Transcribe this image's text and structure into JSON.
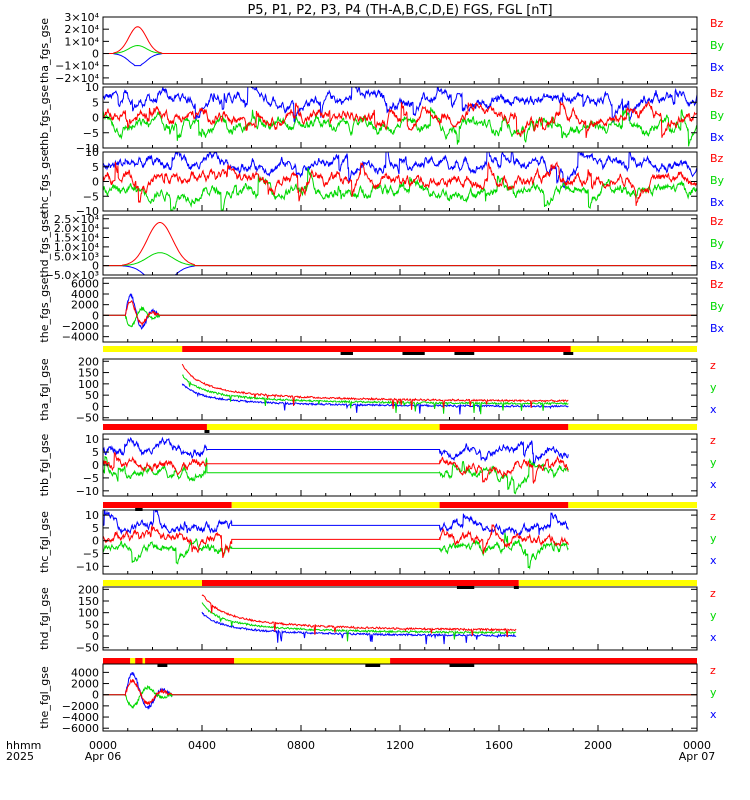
{
  "chart_data": {
    "type": "line",
    "title": "P5, P1, P2, P3, P4 (TH-A,B,C,D,E) FGS, FGL [nT]",
    "x_axis": {
      "label_top": "hhmm",
      "label_bottom": "2025",
      "ticks": [
        {
          "value": 0,
          "top": "0000",
          "bottom": "Apr 06"
        },
        {
          "value": 4,
          "top": "0400",
          "bottom": ""
        },
        {
          "value": 8,
          "top": "0800",
          "bottom": ""
        },
        {
          "value": 12,
          "top": "1200",
          "bottom": ""
        },
        {
          "value": 16,
          "top": "1600",
          "bottom": ""
        },
        {
          "value": 20,
          "top": "2000",
          "bottom": ""
        },
        {
          "value": 24,
          "top": "0000",
          "bottom": "Apr 07"
        }
      ],
      "range": [
        0,
        24
      ]
    },
    "colors": {
      "z": "#ff0000",
      "y": "#00d800",
      "x": "#0000ff",
      "bar_yellow": "#ffff00",
      "bar_red": "#ff0000",
      "bar_black": "#000000"
    },
    "panels": [
      {
        "ylabel": "tha_fgs_gse",
        "ylim": [
          -25000,
          30000
        ],
        "ticks": [
          {
            "v": 30000,
            "t": "3×10⁴"
          },
          {
            "v": 20000,
            "t": "2×10⁴"
          },
          {
            "v": 10000,
            "t": "1×10⁴"
          },
          {
            "v": 0,
            "t": "0"
          },
          {
            "v": -10000,
            "t": "−1×10⁴"
          },
          {
            "v": -20000,
            "t": "−2×10⁴"
          }
        ],
        "legend": [
          "Bz",
          "By",
          "Bx"
        ],
        "kind": "spike",
        "peak": 22000,
        "peak_t": 1.4,
        "start": 0.4,
        "end": 2.4,
        "right_ticks": true
      },
      {
        "ylabel": "thb_fgs_gse",
        "ylim": [
          -10,
          10
        ],
        "ticks": [
          {
            "v": 10,
            "t": "10"
          },
          {
            "v": 5,
            "t": "5"
          },
          {
            "v": 0,
            "t": "0"
          },
          {
            "v": -5,
            "t": "−5"
          },
          {
            "v": -10,
            "t": "−10"
          }
        ],
        "legend": [
          "Bz",
          "By",
          "Bx"
        ],
        "kind": "sw",
        "means": [
          0.5,
          -3,
          6
        ]
      },
      {
        "ylabel": "thc_fgs_gse",
        "ylim": [
          -10,
          10
        ],
        "ticks": [
          {
            "v": 10,
            "t": "10"
          },
          {
            "v": 5,
            "t": "5"
          },
          {
            "v": 0,
            "t": "0"
          },
          {
            "v": -5,
            "t": "−5"
          },
          {
            "v": -10,
            "t": "−10"
          }
        ],
        "legend": [
          "Bz",
          "By",
          "Bx"
        ],
        "kind": "sw",
        "means": [
          0.5,
          -3,
          6
        ]
      },
      {
        "ylabel": "thd_fgs_gse",
        "ylim": [
          -5000,
          27000
        ],
        "ticks": [
          {
            "v": 25000,
            "t": "2.5×10⁴"
          },
          {
            "v": 20000,
            "t": "2.0×10⁴"
          },
          {
            "v": 15000,
            "t": "1.5×10⁴"
          },
          {
            "v": 10000,
            "t": "1.0×10⁴"
          },
          {
            "v": 5000,
            "t": "5.0×10³"
          },
          {
            "v": 0,
            "t": "0"
          },
          {
            "v": -5000,
            "t": "−5.0×10³"
          }
        ],
        "legend": [
          "Bz",
          "By",
          "Bx"
        ],
        "kind": "spike",
        "peak": 23000,
        "peak_t": 2.3,
        "start": 0.8,
        "end": 3.7,
        "right_ticks": false
      },
      {
        "ylabel": "the_fgs_gse",
        "ylim": [
          -5000,
          7000
        ],
        "ticks": [
          {
            "v": 6000,
            "t": "6000"
          },
          {
            "v": 4000,
            "t": "4000"
          },
          {
            "v": 2000,
            "t": "2000"
          },
          {
            "v": 0,
            "t": "0"
          },
          {
            "v": -2000,
            "t": "−2000"
          },
          {
            "v": -4000,
            "t": "−4000"
          }
        ],
        "legend": [
          "Bz",
          "By",
          "Bx"
        ],
        "kind": "burst",
        "start": 0.9,
        "end": 2.3
      },
      {
        "ylabel": "tha_fgl_gse",
        "ylim": [
          -60,
          210
        ],
        "ticks": [
          {
            "v": 200,
            "t": "200"
          },
          {
            "v": 150,
            "t": "150"
          },
          {
            "v": 100,
            "t": "100"
          },
          {
            "v": 50,
            "t": "50"
          },
          {
            "v": 0,
            "t": "0"
          },
          {
            "v": -50,
            "t": "−50"
          }
        ],
        "legend": [
          "z",
          "y",
          "x"
        ],
        "kind": "decay",
        "start": 3.2,
        "end": 18.8,
        "bar": [
          {
            "s": 0,
            "e": 3.2,
            "c": "y"
          },
          {
            "s": 3.2,
            "e": 18.9,
            "c": "r"
          },
          {
            "s": 18.9,
            "e": 24,
            "c": "y"
          }
        ],
        "marks": [
          {
            "s": 9.6,
            "e": 10.1
          },
          {
            "s": 12.1,
            "e": 13.0
          },
          {
            "s": 14.2,
            "e": 15.0
          },
          {
            "s": 18.6,
            "e": 19.0
          }
        ]
      },
      {
        "ylabel": "thb_fgl_gse",
        "ylim": [
          -12,
          12
        ],
        "ticks": [
          {
            "v": 10,
            "t": "10"
          },
          {
            "v": 5,
            "t": "5"
          },
          {
            "v": 0,
            "t": "0"
          },
          {
            "v": -5,
            "t": "−5"
          },
          {
            "v": -10,
            "t": "−10"
          }
        ],
        "legend": [
          "z",
          "y",
          "x"
        ],
        "kind": "sw_gap",
        "means": [
          0.5,
          -3,
          6
        ],
        "seg1": [
          0,
          4.2
        ],
        "seg2": [
          13.6,
          18.8
        ],
        "bar": [
          {
            "s": 0,
            "e": 4.2,
            "c": "r"
          },
          {
            "s": 4.2,
            "e": 13.6,
            "c": "y"
          },
          {
            "s": 13.6,
            "e": 18.8,
            "c": "r"
          },
          {
            "s": 18.8,
            "e": 24,
            "c": "y"
          }
        ],
        "marks": [
          {
            "s": 4.1,
            "e": 4.3
          }
        ]
      },
      {
        "ylabel": "thc_fgl_gse",
        "ylim": [
          -13,
          12
        ],
        "ticks": [
          {
            "v": 10,
            "t": "10"
          },
          {
            "v": 5,
            "t": "5"
          },
          {
            "v": 0,
            "t": "0"
          },
          {
            "v": -5,
            "t": "−5"
          },
          {
            "v": -10,
            "t": "−10"
          }
        ],
        "legend": [
          "z",
          "y",
          "x"
        ],
        "kind": "sw_gap",
        "means": [
          0.5,
          -3,
          6
        ],
        "seg1": [
          0,
          5.2
        ],
        "seg2": [
          13.6,
          18.8
        ],
        "bar": [
          {
            "s": 0,
            "e": 5.2,
            "c": "r"
          },
          {
            "s": 5.2,
            "e": 13.6,
            "c": "y"
          },
          {
            "s": 13.6,
            "e": 18.8,
            "c": "r"
          },
          {
            "s": 18.8,
            "e": 24,
            "c": "y"
          }
        ],
        "marks": [
          {
            "s": 1.3,
            "e": 1.6
          }
        ]
      },
      {
        "ylabel": "thd_fgl_gse",
        "ylim": [
          -60,
          210
        ],
        "ticks": [
          {
            "v": 200,
            "t": "200"
          },
          {
            "v": 150,
            "t": "150"
          },
          {
            "v": 100,
            "t": "100"
          },
          {
            "v": 50,
            "t": "50"
          },
          {
            "v": 0,
            "t": "0"
          },
          {
            "v": -50,
            "t": "−50"
          }
        ],
        "legend": [
          "z",
          "y",
          "x"
        ],
        "kind": "decay",
        "start": 4.0,
        "end": 16.7,
        "bar": [
          {
            "s": 0,
            "e": 4.0,
            "c": "y"
          },
          {
            "s": 4.0,
            "e": 16.8,
            "c": "r"
          },
          {
            "s": 16.8,
            "e": 24,
            "c": "y"
          }
        ],
        "marks": [
          {
            "s": 14.3,
            "e": 15.0
          },
          {
            "s": 16.6,
            "e": 16.8
          }
        ]
      },
      {
        "ylabel": "the_fgl_gse",
        "ylim": [
          -6500,
          5500
        ],
        "ticks": [
          {
            "v": 4000,
            "t": "4000"
          },
          {
            "v": 2000,
            "t": "2000"
          },
          {
            "v": 0,
            "t": "0"
          },
          {
            "v": -2000,
            "t": "−2000"
          },
          {
            "v": -4000,
            "t": "−4000"
          },
          {
            "v": -6000,
            "t": "−6000"
          }
        ],
        "legend": [
          "z",
          "y",
          "x"
        ],
        "kind": "burst",
        "start": 0.9,
        "end": 2.8,
        "bar": [
          {
            "s": 0,
            "e": 1.1,
            "c": "r"
          },
          {
            "s": 1.1,
            "e": 1.3,
            "c": "y"
          },
          {
            "s": 1.3,
            "e": 1.6,
            "c": "r"
          },
          {
            "s": 1.6,
            "e": 1.7,
            "c": "y"
          },
          {
            "s": 1.7,
            "e": 5.3,
            "c": "r"
          },
          {
            "s": 5.3,
            "e": 11.6,
            "c": "y"
          },
          {
            "s": 11.6,
            "e": 24,
            "c": "r"
          }
        ],
        "marks": [
          {
            "s": 2.2,
            "e": 2.6
          },
          {
            "s": 10.6,
            "e": 11.2
          },
          {
            "s": 14.0,
            "e": 15.0
          }
        ]
      }
    ]
  }
}
